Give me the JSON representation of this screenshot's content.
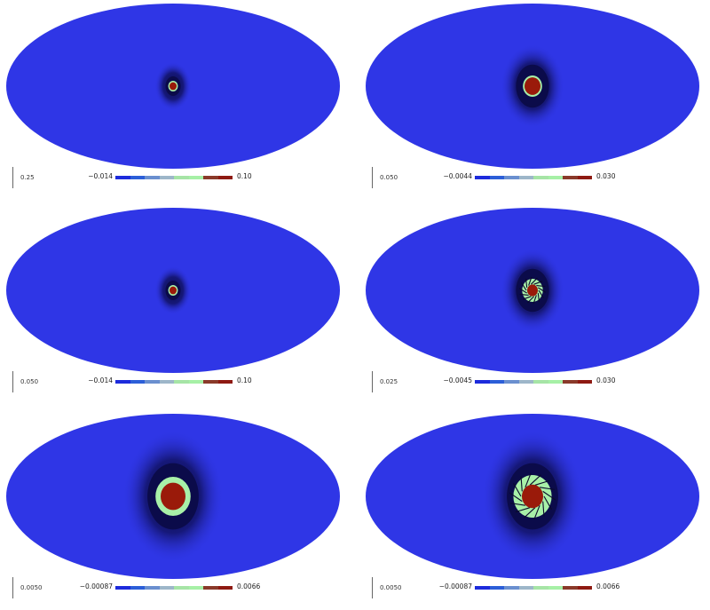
{
  "panels": [
    {
      "scale": "0.25",
      "cmin": "−0.014",
      "cmax": "0.10",
      "style": "spot-small",
      "spin": false
    },
    {
      "scale": "0.050",
      "cmin": "−0.0044",
      "cmax": "0.030",
      "style": "spot-medium",
      "spin": false
    },
    {
      "scale": "0.050",
      "cmin": "−0.014",
      "cmax": "0.10",
      "style": "spot-small-2",
      "spin": false
    },
    {
      "scale": "0.025",
      "cmin": "−0.0045",
      "cmax": "0.030",
      "style": "swirl-medium",
      "spin": true
    },
    {
      "scale": "0.0050",
      "cmin": "−0.00087",
      "cmax": "0.0066",
      "style": "spot-large",
      "spin": false
    },
    {
      "scale": "0.0050",
      "cmin": "−0.00087",
      "cmax": "0.0066",
      "style": "swirl-large",
      "spin": true
    }
  ],
  "colors": {
    "background_field": "#2f36e6",
    "ring_dark": "#0b0b4a",
    "ring_green": "#a8f0a8",
    "core_red": "#9a1a0a",
    "cbar": [
      "#1d2bdc",
      "#2c5ed8",
      "#6a8fcf",
      "#9db6c9",
      "#a6e4a6",
      "#a6f0a6",
      "#8a3a2a",
      "#8e1a12"
    ]
  }
}
